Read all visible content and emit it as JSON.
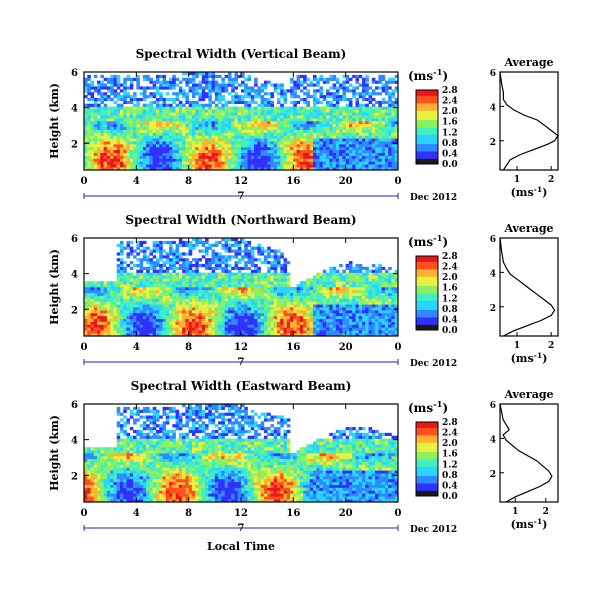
{
  "chart_data": [
    {
      "type": "heatmap",
      "title": "Spectral Width (Vertical Beam)",
      "ylabel": "Height (km)",
      "y_ticks": [
        "2",
        "4",
        "6"
      ],
      "x_ticks": [
        "0",
        "4",
        "8",
        "12",
        "16",
        "20",
        "0"
      ],
      "date_day": "7",
      "date_label": "Dec 2012",
      "xlim": [
        0,
        24
      ],
      "ylim": [
        0.5,
        6
      ],
      "colorbar": {
        "unit_label": "(ms",
        "unit_exp": "-1",
        "unit_close": ")",
        "ticks": [
          "0.0",
          "0.4",
          "0.8",
          "1.2",
          "1.6",
          "2.0",
          "2.4",
          "2.8"
        ]
      },
      "average_profile": {
        "title": "Average",
        "x_ticks": [
          "1",
          "2"
        ],
        "y_ticks": [
          "2",
          "4",
          "6"
        ],
        "xlabel": "(ms",
        "xlabel_exp": "-1",
        "xlabel_close": ")",
        "xlim": [
          0.5,
          2.2
        ],
        "ylim": [
          0.3,
          6
        ],
        "width": [
          0.6,
          0.7,
          0.8,
          1.1,
          1.5,
          1.9,
          2.1,
          2.2,
          2.0,
          1.8,
          1.6,
          1.2,
          0.9,
          0.7,
          0.6,
          0.6,
          0.55,
          0.5
        ],
        "height": [
          0.3,
          0.6,
          0.9,
          1.2,
          1.5,
          1.8,
          2.0,
          2.3,
          2.6,
          2.9,
          3.2,
          3.5,
          3.8,
          4.1,
          4.4,
          4.8,
          5.3,
          6.0
        ]
      }
    },
    {
      "type": "heatmap",
      "title": "Spectral Width (Northward Beam)",
      "ylabel": "Height (km)",
      "y_ticks": [
        "2",
        "4",
        "6"
      ],
      "x_ticks": [
        "0",
        "4",
        "8",
        "12",
        "16",
        "20",
        "0"
      ],
      "date_day": "7",
      "date_label": "Dec 2012",
      "xlim": [
        0,
        24
      ],
      "ylim": [
        0.5,
        6
      ],
      "colorbar": {
        "unit_label": "(ms",
        "unit_exp": "-1",
        "unit_close": ")",
        "ticks": [
          "0.0",
          "0.4",
          "0.8",
          "1.2",
          "1.6",
          "2.0",
          "2.4",
          "2.8"
        ]
      },
      "average_profile": {
        "title": "Average",
        "x_ticks": [
          "1",
          "2"
        ],
        "y_ticks": [
          "2",
          "4",
          "6"
        ],
        "xlabel": "(ms",
        "xlabel_exp": "-1",
        "xlabel_close": ")",
        "xlim": [
          0.5,
          2.2
        ],
        "ylim": [
          0.3,
          6
        ],
        "width": [
          0.6,
          0.9,
          1.3,
          1.7,
          2.0,
          2.1,
          2.0,
          1.8,
          1.6,
          1.4,
          1.2,
          1.0,
          0.8,
          0.7,
          0.6,
          0.55,
          0.5
        ],
        "height": [
          0.3,
          0.6,
          0.9,
          1.2,
          1.5,
          1.8,
          2.1,
          2.4,
          2.7,
          3.0,
          3.3,
          3.6,
          3.9,
          4.2,
          4.6,
          5.2,
          6.0
        ]
      }
    },
    {
      "type": "heatmap",
      "title": "Spectral Width (Eastward Beam)",
      "ylabel": "Height (km)",
      "y_ticks": [
        "2",
        "4",
        "6"
      ],
      "x_ticks": [
        "0",
        "4",
        "8",
        "12",
        "16",
        "20",
        "0"
      ],
      "date_day": "7",
      "date_label": "Dec 2012",
      "xlabel": "Local Time",
      "xlim": [
        0,
        24
      ],
      "ylim": [
        0.5,
        6
      ],
      "colorbar": {
        "unit_label": "(ms",
        "unit_exp": "-1",
        "unit_close": ")",
        "ticks": [
          "0.0",
          "0.4",
          "0.8",
          "1.2",
          "1.6",
          "2.0",
          "2.4",
          "2.8"
        ]
      },
      "average_profile": {
        "title": "Average",
        "x_ticks": [
          "1",
          "2"
        ],
        "y_ticks": [
          "2",
          "4",
          "6"
        ],
        "xlabel": "(ms",
        "xlabel_exp": "-1",
        "xlabel_close": ")",
        "xlim": [
          0.5,
          2.4
        ],
        "ylim": [
          0.3,
          6
        ],
        "width": [
          0.7,
          1.0,
          1.4,
          1.8,
          2.1,
          2.2,
          2.1,
          1.9,
          1.7,
          1.4,
          1.1,
          0.9,
          0.7,
          0.6,
          0.8,
          0.6,
          0.5
        ],
        "height": [
          0.3,
          0.6,
          0.9,
          1.2,
          1.5,
          1.8,
          2.1,
          2.4,
          2.7,
          3.0,
          3.3,
          3.6,
          3.9,
          4.2,
          4.5,
          5.1,
          6.0
        ]
      }
    }
  ],
  "footer": {
    "xlabel": "Local Time"
  },
  "colors": {
    "scale": [
      "#1a1a1a",
      "#3030ff",
      "#2e8bff",
      "#2ad4ff",
      "#40f0c0",
      "#8cf060",
      "#e8f040",
      "#ffb030",
      "#ff5020",
      "#e81818"
    ]
  }
}
